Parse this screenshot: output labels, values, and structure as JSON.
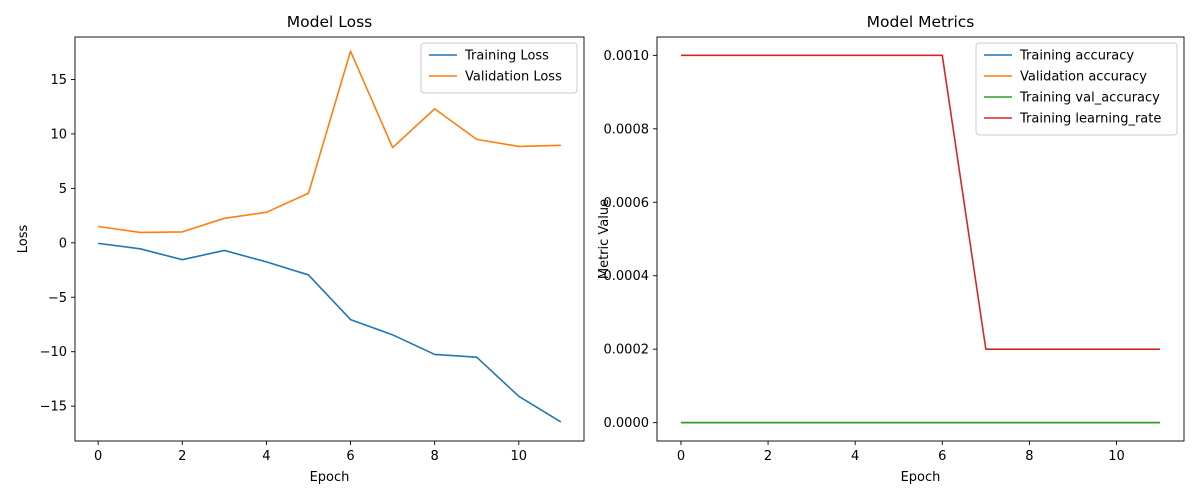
{
  "chart_data": [
    {
      "type": "line",
      "title": "Model Loss",
      "xlabel": "Epoch",
      "ylabel": "Loss",
      "x": [
        0,
        1,
        2,
        3,
        4,
        5,
        6,
        7,
        8,
        9,
        10,
        11
      ],
      "xlim": [
        -0.55,
        11.55
      ],
      "ylim": [
        -18.2,
        18.9
      ],
      "xticks": [
        0,
        2,
        4,
        6,
        8,
        10
      ],
      "yticks": [
        -15,
        -10,
        -5,
        0,
        5,
        10,
        15
      ],
      "grid": false,
      "legend_position": "upper right",
      "series": [
        {
          "name": "Training Loss",
          "color": "#1f77b4",
          "values": [
            -0.05,
            -0.55,
            -1.55,
            -0.7,
            -1.75,
            -2.95,
            -7.05,
            -8.45,
            -10.25,
            -10.5,
            -14.1,
            -16.45
          ]
        },
        {
          "name": "Validation Loss",
          "color": "#ff7f0e",
          "values": [
            1.5,
            0.95,
            1.0,
            2.25,
            2.8,
            4.55,
            17.6,
            8.75,
            12.3,
            9.5,
            8.85,
            8.95
          ]
        }
      ]
    },
    {
      "type": "line",
      "title": "Model Metrics",
      "xlabel": "Epoch",
      "ylabel": "Metric Value",
      "x": [
        0,
        1,
        2,
        3,
        4,
        5,
        6,
        7,
        8,
        9,
        10,
        11
      ],
      "xlim": [
        -0.55,
        11.55
      ],
      "ylim": [
        -5e-05,
        0.00105
      ],
      "xticks": [
        0,
        2,
        4,
        6,
        8,
        10
      ],
      "yticks": [
        0,
        0.0002,
        0.0004,
        0.0006,
        0.0008,
        0.001
      ],
      "ytick_labels": [
        "0.0000",
        "0.0002",
        "0.0004",
        "0.0006",
        "0.0008",
        "0.0010"
      ],
      "grid": false,
      "legend_position": "upper right",
      "series": [
        {
          "name": "Training accuracy",
          "color": "#1f77b4",
          "values": [
            0,
            0,
            0,
            0,
            0,
            0,
            0,
            0,
            0,
            0,
            0,
            0
          ]
        },
        {
          "name": "Validation accuracy",
          "color": "#ff7f0e",
          "values": [
            0,
            0,
            0,
            0,
            0,
            0,
            0,
            0,
            0,
            0,
            0,
            0
          ]
        },
        {
          "name": "Training val_accuracy",
          "color": "#2ca02c",
          "values": [
            0,
            0,
            0,
            0,
            0,
            0,
            0,
            0,
            0,
            0,
            0,
            0
          ]
        },
        {
          "name": "Training learning_rate",
          "color": "#d62728",
          "values": [
            0.001,
            0.001,
            0.001,
            0.001,
            0.001,
            0.001,
            0.001,
            0.0002,
            0.0002,
            0.0002,
            0.0002,
            0.0002
          ]
        }
      ]
    }
  ]
}
